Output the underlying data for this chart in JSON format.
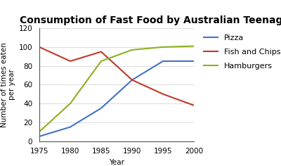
{
  "title": "Consumption of Fast Food by Australian Teenagers",
  "xlabel": "Year",
  "ylabel": "Number of times eaten\nper year",
  "years": [
    1975,
    1980,
    1985,
    1990,
    1995,
    2000
  ],
  "pizza": [
    5,
    15,
    35,
    65,
    85,
    85
  ],
  "fish_and_chips": [
    100,
    85,
    95,
    65,
    50,
    38
  ],
  "hamburgers": [
    10,
    40,
    85,
    97,
    100,
    101
  ],
  "pizza_color": "#4472C4",
  "fish_color": "#C0392B",
  "hamburgers_color": "#8DB020",
  "ylim": [
    0,
    120
  ],
  "yticks": [
    0,
    20,
    40,
    60,
    80,
    100,
    120
  ],
  "xticks": [
    1975,
    1980,
    1985,
    1990,
    1995,
    2000
  ],
  "legend_labels": [
    "Pizza",
    "Fish and Chips",
    "Hamburgers"
  ],
  "bg_color": "#FFFFFF",
  "title_fontsize": 10,
  "axis_label_fontsize": 7.5,
  "tick_fontsize": 7.5,
  "legend_fontsize": 8
}
